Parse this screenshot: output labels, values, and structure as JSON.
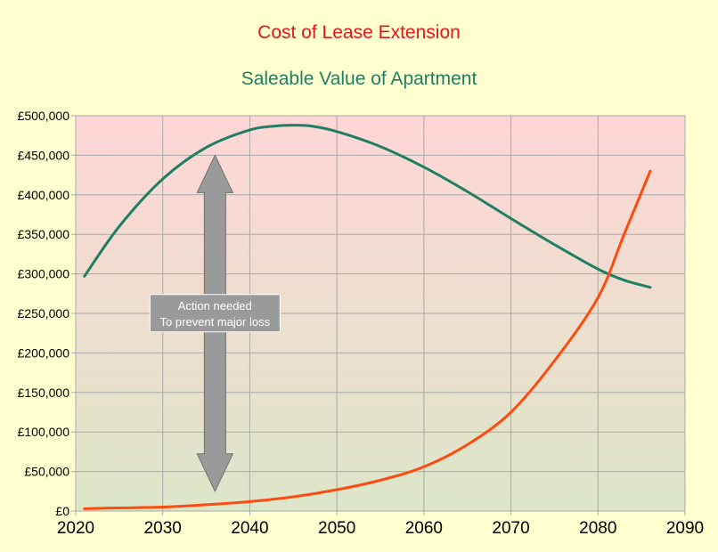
{
  "chart_data": {
    "type": "line",
    "title": "Cost of Lease Extension",
    "subtitle": "Saleable Value of Apartment",
    "colors": {
      "title": "#e8141c",
      "subtitle": "#1f7f63",
      "background_top": "#ffd6d6",
      "background_bottom": "#dce6c8",
      "page": "#ffffd0",
      "arrow": "#9a9a9a"
    },
    "xlim": [
      2020,
      2090
    ],
    "ylim": [
      0,
      500000
    ],
    "x_ticks": [
      "2020",
      "2030",
      "2040",
      "2050",
      "2060",
      "2070",
      "2080",
      "2090"
    ],
    "y_ticks": [
      "£0",
      "£50,000",
      "£100,000",
      "£150,000",
      "£200,000",
      "£250,000",
      "£300,000",
      "£350,000",
      "£400,000",
      "£450,000",
      "£500,000"
    ],
    "grid": true,
    "series": [
      {
        "name": "Saleable Value of Apartment",
        "color": "#1f7f63",
        "x": [
          2021,
          2025,
          2030,
          2035,
          2040,
          2043,
          2045,
          2047,
          2050,
          2055,
          2060,
          2065,
          2070,
          2075,
          2080,
          2083,
          2086
        ],
        "y": [
          297000,
          360000,
          420000,
          460000,
          482000,
          487000,
          488000,
          487000,
          480000,
          461000,
          435000,
          404000,
          370000,
          337000,
          306000,
          292000,
          283000
        ]
      },
      {
        "name": "Cost of Lease Extension",
        "color": "#ff4a10",
        "x": [
          2021,
          2025,
          2030,
          2035,
          2040,
          2045,
          2050,
          2055,
          2060,
          2065,
          2070,
          2075,
          2080,
          2083,
          2086
        ],
        "y": [
          3000,
          4000,
          5000,
          8000,
          12000,
          18000,
          27000,
          39000,
          56000,
          84000,
          125000,
          190000,
          270000,
          350000,
          430000
        ]
      }
    ],
    "annotation": {
      "text_line1": "Action needed",
      "text_line2": "To prevent major loss",
      "x": 2036,
      "y_top": 450000,
      "y_bottom": 25000
    }
  }
}
